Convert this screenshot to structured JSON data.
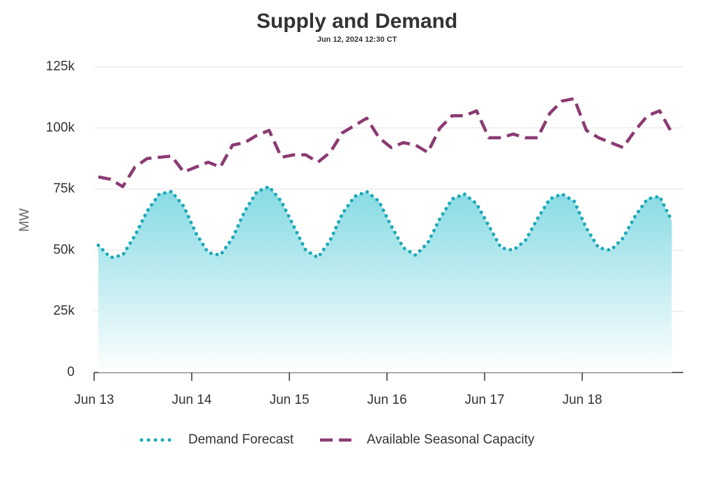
{
  "chart_data": {
    "type": "line",
    "title": "Supply and Demand",
    "subtitle": "Jun 12, 2024 12:30 CT",
    "y_label": "MW",
    "categories": [
      "Jun 13",
      null,
      null,
      null,
      null,
      null,
      null,
      null,
      "Jun 14",
      null,
      null,
      null,
      null,
      null,
      null,
      null,
      "Jun 15",
      null,
      null,
      null,
      null,
      null,
      null,
      null,
      "Jun 16",
      null,
      null,
      null,
      null,
      null,
      null,
      null,
      "Jun 17",
      null,
      null,
      null,
      null,
      null,
      null,
      null,
      "Jun 18",
      null,
      null,
      null,
      null,
      null,
      null,
      null
    ],
    "series": [
      {
        "name": "Demand Forecast",
        "color": "#1aa9b8",
        "style": "dotted",
        "fill": true,
        "values": [
          52000,
          47000,
          48000,
          56000,
          66000,
          73000,
          74000,
          68000,
          57000,
          49000,
          48000,
          55000,
          66000,
          74000,
          76000,
          70000,
          60000,
          50000,
          47000,
          54000,
          65000,
          72000,
          74000,
          70000,
          60000,
          51000,
          48000,
          53000,
          63000,
          71000,
          73000,
          69000,
          60000,
          51000,
          50000,
          54000,
          63000,
          71000,
          73000,
          70000,
          59000,
          51000,
          50000,
          55000,
          64000,
          71000,
          72000,
          62000
        ]
      },
      {
        "name": "Available Seasonal Capacity",
        "color": "#8b3a72",
        "style": "dashed",
        "fill": false,
        "values": [
          80000,
          79000,
          76000,
          84000,
          87500,
          88000,
          88500,
          82000,
          84000,
          86000,
          84000,
          93000,
          94000,
          97000,
          99000,
          88000,
          89000,
          89000,
          86000,
          90000,
          98000,
          101000,
          104000,
          96000,
          92000,
          94000,
          93000,
          90000,
          100000,
          105000,
          105000,
          107000,
          96000,
          96000,
          97500,
          96000,
          96000,
          106000,
          111000,
          112000,
          99000,
          96000,
          94000,
          92000,
          99000,
          105000,
          107000,
          98000
        ]
      }
    ],
    "ylim": [
      0,
      125000
    ],
    "yticks": [
      0,
      {
        "value": 25000,
        "label": "25k"
      },
      {
        "value": 50000,
        "label": "50k"
      },
      {
        "value": 75000,
        "label": "75k"
      },
      {
        "value": 100000,
        "label": "100k"
      },
      {
        "value": 125000,
        "label": "125k"
      }
    ],
    "grid": true,
    "legend": "bottom"
  }
}
